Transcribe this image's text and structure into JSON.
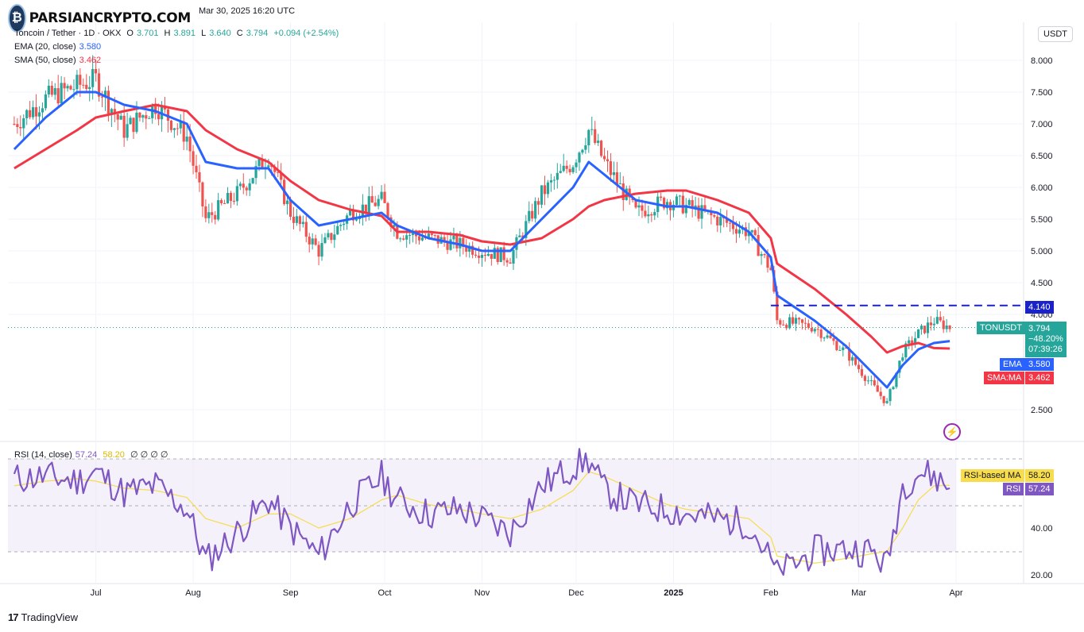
{
  "header": {
    "published": "Mar 30, 2025 16:20 UTC",
    "symbol_line": "Toncoin / Tether · 1D · OKX",
    "ohlc": {
      "o_label": "O",
      "o": "3.701",
      "h_label": "H",
      "h": "3.891",
      "l_label": "L",
      "l": "3.640",
      "c_label": "C",
      "c": "3.794",
      "change": "+0.094 (+2.54%)"
    },
    "ema_label": "EMA (20, close)",
    "ema_value": "3.580",
    "sma_label": "SMA (50, close)",
    "sma_value": "3.462",
    "rsi_label": "RSI (14, close)",
    "rsi_value": "57.24",
    "rsi_ma_value": "58.20",
    "rsi_extra": "∅ ∅ ∅ ∅"
  },
  "watermark": {
    "text": "PARSIANCRYPTO.COM"
  },
  "currency_button": "USDT",
  "tags": {
    "resistance": "4.140",
    "symbol": "TONUSDT",
    "price": "3.794",
    "pct": "−48.20%",
    "countdown": "07:39:26",
    "ema_name": "EMA",
    "ema_val": "3.580",
    "sma_name": "SMA:MA",
    "sma_val": "3.462",
    "rsi_ma_name": "RSI-based MA",
    "rsi_ma_val": "58.20",
    "rsi_name": "RSI",
    "rsi_val": "57.24"
  },
  "footer": {
    "brand": "TradingView",
    "mark": "17"
  },
  "colors": {
    "up": "#26a69a",
    "down": "#ef5350",
    "ema": "#2962ff",
    "sma": "#f23645",
    "rsi": "#7e57c2",
    "rsi_ma": "#f7dc4b",
    "resistance": "#1a23c9"
  },
  "chart_data": {
    "type": "candlestick",
    "y_ticks": [
      "8.000",
      "7.500",
      "7.000",
      "6.500",
      "6.000",
      "5.500",
      "5.000",
      "4.500",
      "4.000",
      "2.500"
    ],
    "x_ticks": [
      "Jul",
      "Aug",
      "Sep",
      "Oct",
      "Nov",
      "Dec",
      "2025",
      "Feb",
      "Mar",
      "Apr"
    ],
    "rsi_ticks": [
      "40.00",
      "20.00"
    ],
    "resistance_level": 4.14,
    "price_series": {
      "dates": [
        "2024-06-05",
        "2024-06-15",
        "2024-06-25",
        "2024-07-01",
        "2024-07-10",
        "2024-07-20",
        "2024-07-30",
        "2024-08-05",
        "2024-08-15",
        "2024-08-25",
        "2024-09-01",
        "2024-09-10",
        "2024-09-20",
        "2024-09-30",
        "2024-10-05",
        "2024-10-15",
        "2024-10-25",
        "2024-11-01",
        "2024-11-10",
        "2024-11-20",
        "2024-11-30",
        "2024-12-05",
        "2024-12-10",
        "2024-12-20",
        "2024-12-30",
        "2025-01-05",
        "2025-01-15",
        "2025-01-25",
        "2025-02-01",
        "2025-02-03",
        "2025-02-15",
        "2025-02-25",
        "2025-03-05",
        "2025-03-10",
        "2025-03-15",
        "2025-03-20",
        "2025-03-25",
        "2025-03-30"
      ],
      "close": [
        7.0,
        7.4,
        7.6,
        7.7,
        6.9,
        7.3,
        6.8,
        5.5,
        5.9,
        6.5,
        5.6,
        5.0,
        5.6,
        5.8,
        5.3,
        5.2,
        5.1,
        5.0,
        4.9,
        5.9,
        6.4,
        6.9,
        6.4,
        5.6,
        5.8,
        5.7,
        5.5,
        5.3,
        4.7,
        3.9,
        3.8,
        3.4,
        2.9,
        2.6,
        3.4,
        3.7,
        3.9,
        3.794
      ]
    },
    "ema20": {
      "values": [
        6.6,
        7.1,
        7.5,
        7.5,
        7.3,
        7.2,
        7.0,
        6.4,
        6.3,
        6.3,
        5.8,
        5.4,
        5.5,
        5.6,
        5.4,
        5.2,
        5.1,
        5.0,
        5.0,
        5.5,
        6.0,
        6.4,
        6.2,
        5.8,
        5.7,
        5.7,
        5.6,
        5.3,
        4.9,
        4.3,
        3.9,
        3.5,
        3.1,
        2.85,
        3.2,
        3.45,
        3.55,
        3.58
      ]
    },
    "sma50": {
      "values": [
        6.3,
        6.6,
        6.9,
        7.1,
        7.2,
        7.3,
        7.2,
        6.9,
        6.6,
        6.4,
        6.1,
        5.8,
        5.65,
        5.55,
        5.3,
        5.3,
        5.25,
        5.15,
        5.1,
        5.2,
        5.5,
        5.7,
        5.8,
        5.9,
        5.95,
        5.95,
        5.8,
        5.6,
        5.2,
        4.8,
        4.4,
        4.0,
        3.65,
        3.4,
        3.5,
        3.55,
        3.47,
        3.462
      ]
    },
    "rsi": {
      "values": [
        61,
        62,
        60,
        64,
        55,
        58,
        48,
        26,
        38,
        52,
        40,
        28,
        50,
        62,
        52,
        46,
        48,
        44,
        38,
        58,
        66,
        69,
        56,
        50,
        48,
        46,
        44,
        42,
        26,
        20,
        30,
        31,
        30,
        24,
        58,
        64,
        62,
        57.24
      ]
    },
    "rsi_ma": {
      "values": [
        58,
        60,
        61,
        60,
        57,
        56,
        53,
        44,
        40,
        46,
        46,
        40,
        44,
        52,
        54,
        50,
        48,
        46,
        44,
        48,
        56,
        64,
        62,
        56,
        50,
        48,
        46,
        44,
        36,
        28,
        25,
        27,
        29,
        30,
        40,
        52,
        58,
        58.2
      ]
    }
  }
}
